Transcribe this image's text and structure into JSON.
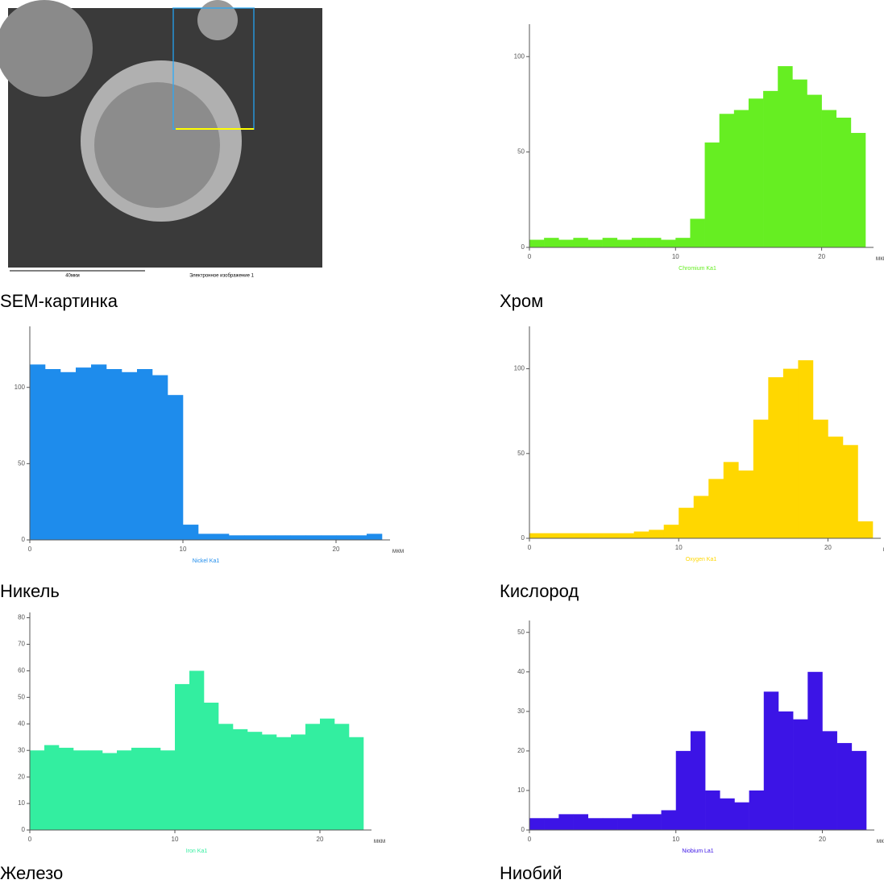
{
  "sem_image": {
    "caption": "SEM-картинка",
    "scale_label": "40мкм",
    "image_label": "Электронное изображение 1"
  },
  "chart_data": [
    {
      "type": "bar",
      "caption": "Хром",
      "xlabel": "мкм",
      "x": [
        0,
        1,
        2,
        3,
        4,
        5,
        6,
        7,
        8,
        9,
        10,
        11,
        12,
        13,
        14,
        15,
        16,
        17,
        18,
        19,
        20,
        21,
        22
      ],
      "series": [
        {
          "name": "Chromium Ka1",
          "color": "#66ee22",
          "values": [
            4,
            5,
            4,
            5,
            4,
            5,
            4,
            5,
            5,
            4,
            5,
            15,
            55,
            70,
            72,
            78,
            82,
            95,
            88,
            80,
            72,
            68,
            60
          ]
        }
      ],
      "xlim": [
        0,
        23
      ],
      "xticks": [
        0,
        10,
        20
      ],
      "ylim": [
        0,
        117
      ],
      "yticks": [
        0,
        50,
        100
      ]
    },
    {
      "type": "bar",
      "caption": "Никель",
      "xlabel": "мкм",
      "x": [
        0,
        1,
        2,
        3,
        4,
        5,
        6,
        7,
        8,
        9,
        10,
        11,
        12,
        13,
        14,
        15,
        16,
        17,
        18,
        19,
        20,
        21,
        22
      ],
      "series": [
        {
          "name": "Nickel Ka1",
          "color": "#1e8cec",
          "values": [
            115,
            112,
            110,
            113,
            115,
            112,
            110,
            112,
            108,
            95,
            10,
            4,
            4,
            3,
            3,
            3,
            3,
            3,
            3,
            3,
            3,
            3,
            4
          ]
        }
      ],
      "xlim": [
        0,
        23
      ],
      "xticks": [
        0,
        10,
        20
      ],
      "ylim": [
        0,
        140
      ],
      "yticks": [
        0,
        50,
        100
      ]
    },
    {
      "type": "bar",
      "caption": "Кислород",
      "xlabel": "мкм",
      "x": [
        0,
        1,
        2,
        3,
        4,
        5,
        6,
        7,
        8,
        9,
        10,
        11,
        12,
        13,
        14,
        15,
        16,
        17,
        18,
        19,
        20,
        21,
        22
      ],
      "series": [
        {
          "name": "Oxygen Ka1",
          "color": "#ffd700",
          "values": [
            3,
            3,
            3,
            3,
            3,
            3,
            3,
            4,
            5,
            8,
            18,
            25,
            35,
            45,
            40,
            70,
            95,
            100,
            105,
            70,
            60,
            55,
            10
          ]
        }
      ],
      "xlim": [
        0,
        23
      ],
      "xticks": [
        0,
        10,
        20
      ],
      "ylim": [
        0,
        125
      ],
      "yticks": [
        0,
        50,
        100
      ]
    },
    {
      "type": "bar",
      "caption": "Железо",
      "xlabel": "мкм",
      "x": [
        0,
        1,
        2,
        3,
        4,
        5,
        6,
        7,
        8,
        9,
        10,
        11,
        12,
        13,
        14,
        15,
        16,
        17,
        18,
        19,
        20,
        21,
        22
      ],
      "series": [
        {
          "name": "Iron Ka1",
          "color": "#33eea0",
          "values": [
            30,
            32,
            31,
            30,
            30,
            29,
            30,
            31,
            31,
            30,
            55,
            60,
            48,
            40,
            38,
            37,
            36,
            35,
            36,
            40,
            42,
            40,
            35
          ]
        }
      ],
      "xlim": [
        0,
        23
      ],
      "xticks": [
        0,
        10,
        20
      ],
      "ylim": [
        0,
        82
      ],
      "yticks": [
        0,
        10,
        20,
        30,
        40,
        50,
        60,
        70,
        80
      ]
    },
    {
      "type": "bar",
      "caption": "Ниобий",
      "xlabel": "мкм",
      "x": [
        0,
        1,
        2,
        3,
        4,
        5,
        6,
        7,
        8,
        9,
        10,
        11,
        12,
        13,
        14,
        15,
        16,
        17,
        18,
        19,
        20,
        21,
        22
      ],
      "series": [
        {
          "name": "Niobium La1",
          "color": "#3c14e6",
          "values": [
            3,
            3,
            4,
            4,
            3,
            3,
            3,
            4,
            4,
            5,
            20,
            25,
            10,
            8,
            7,
            10,
            35,
            30,
            28,
            40,
            25,
            22,
            20
          ]
        }
      ],
      "xlim": [
        0,
        23
      ],
      "xticks": [
        0,
        10,
        20
      ],
      "ylim": [
        0,
        53
      ],
      "yticks": [
        0,
        10,
        20,
        30,
        40,
        50
      ]
    }
  ]
}
